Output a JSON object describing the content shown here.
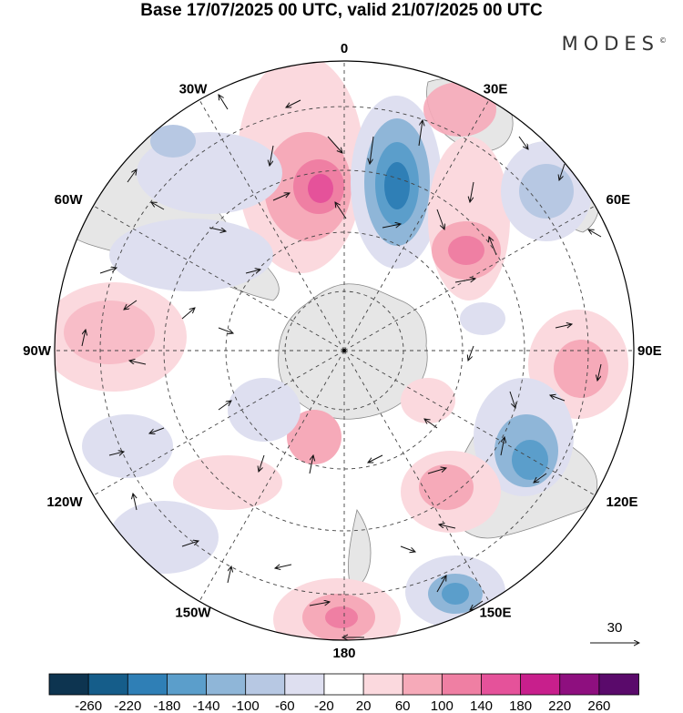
{
  "title": "Base 17/07/2025 00 UTC, valid 21/07/2025 00 UTC",
  "brand": {
    "name": "MODES",
    "mark": "©"
  },
  "map": {
    "projection": "south-polar-stereographic",
    "longitude_labels": [
      {
        "text": "0",
        "lon": 0
      },
      {
        "text": "30E",
        "lon": 30
      },
      {
        "text": "60E",
        "lon": 60
      },
      {
        "text": "90E",
        "lon": 90
      },
      {
        "text": "120E",
        "lon": 120
      },
      {
        "text": "150E",
        "lon": 150
      },
      {
        "text": "180",
        "lon": 180
      },
      {
        "text": "150W",
        "lon": -150
      },
      {
        "text": "120W",
        "lon": -120
      },
      {
        "text": "90W",
        "lon": -90
      },
      {
        "text": "60W",
        "lon": -60
      },
      {
        "text": "30W",
        "lon": -30
      }
    ],
    "reference_vector": {
      "label": "30"
    }
  },
  "colorbar": {
    "ticks": [
      "-260",
      "-220",
      "-180",
      "-140",
      "-100",
      "-60",
      "-20",
      "20",
      "60",
      "100",
      "140",
      "180",
      "220",
      "260"
    ],
    "colors": [
      "#0d3450",
      "#155d8a",
      "#2f7fb6",
      "#5b9ecb",
      "#8fb6d8",
      "#b7c8e3",
      "#dedff0",
      "#ffffff",
      "#fbd9de",
      "#f6aab9",
      "#ef7fa3",
      "#e5529a",
      "#c81f8c",
      "#8e0f7f",
      "#5a0a6b"
    ]
  },
  "colors": {
    "land": "#e6e6e6",
    "coast": "#8a8a8a",
    "grid": "#444444",
    "arrow": "#111111"
  }
}
